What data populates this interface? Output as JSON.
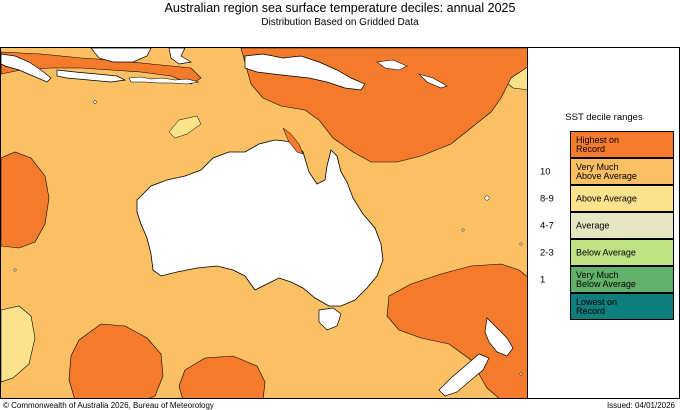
{
  "header": {
    "title": "Australian region sea surface temperature deciles:  annual 2025",
    "subtitle": "Distribution Based on Gridded Data"
  },
  "legend": {
    "title": "SST decile ranges",
    "rows": [
      {
        "label": "Highest on\nRecord",
        "code": "",
        "color": "#f47a2c"
      },
      {
        "label": "Very Much\nAbove Average",
        "code": "10",
        "color": "#fbbf64"
      },
      {
        "label": "Above Average",
        "code": "8-9",
        "color": "#fbe38d"
      },
      {
        "label": "Average",
        "code": "4-7",
        "color": "#e6e6c2"
      },
      {
        "label": "Below Average",
        "code": "2-3",
        "color": "#bfe285"
      },
      {
        "label": "Very Much\nBelow Average",
        "code": "1",
        "color": "#62b06a"
      },
      {
        "label": "Lowest on\nRecord",
        "code": "",
        "color": "#0e7f7d"
      }
    ]
  },
  "footer": {
    "copyright": "© Commonwealth of Australia 2026, Bureau of Meteorology",
    "issued": "Issued: 04/01/2026"
  },
  "colors": {
    "land": "#ffffff",
    "highest": "#f47a2c",
    "very_much_above": "#fbbf64",
    "above": "#fbe38d",
    "coastline": "#000000"
  }
}
